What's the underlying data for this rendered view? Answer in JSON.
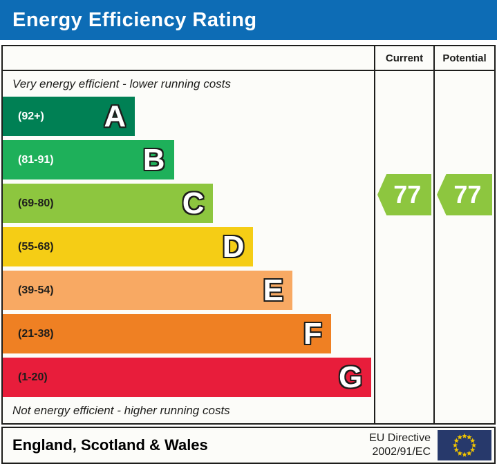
{
  "title_bar": {
    "title": "Energy Efficiency Rating",
    "bg_color": "#0d6cb5"
  },
  "table": {
    "headers": {
      "current": "Current",
      "potential": "Potential"
    },
    "top_note": "Very energy efficient - lower running costs",
    "bottom_note": "Not energy efficient - higher running costs"
  },
  "footer": {
    "region": "England, Scotland & Wales",
    "directive_line1": "EU Directive",
    "directive_line2": "2002/91/EC",
    "flag_icon": "eu-flag-icon",
    "flag_colors": {
      "field": "#27396b",
      "stars": "#f2c500"
    }
  },
  "chart_data": {
    "type": "bar",
    "title": "Energy Efficiency Rating",
    "categories": [
      "A",
      "B",
      "C",
      "D",
      "E",
      "F",
      "G"
    ],
    "bands": [
      {
        "letter": "A",
        "range_label": "(92+)",
        "score_min": 92,
        "score_max": 100,
        "color": "#008054",
        "label_color": "#ffffff",
        "width_pct": 35.6
      },
      {
        "letter": "B",
        "range_label": "(81-91)",
        "score_min": 81,
        "score_max": 91,
        "color": "#1eb05a",
        "label_color": "#ffffff",
        "width_pct": 46.1
      },
      {
        "letter": "C",
        "range_label": "(69-80)",
        "score_min": 69,
        "score_max": 80,
        "color": "#8dc63f",
        "label_color": "#1d1d1b",
        "width_pct": 56.7
      },
      {
        "letter": "D",
        "range_label": "(55-68)",
        "score_min": 55,
        "score_max": 68,
        "color": "#f5cd15",
        "label_color": "#1d1d1b",
        "width_pct": 67.5
      },
      {
        "letter": "E",
        "range_label": "(39-54)",
        "score_min": 39,
        "score_max": 54,
        "color": "#f8a963",
        "label_color": "#1d1d1b",
        "width_pct": 78.0
      },
      {
        "letter": "F",
        "range_label": "(21-38)",
        "score_min": 21,
        "score_max": 38,
        "color": "#ef8023",
        "label_color": "#1d1d1b",
        "width_pct": 88.4
      },
      {
        "letter": "G",
        "range_label": "(1-20)",
        "score_min": 1,
        "score_max": 20,
        "color": "#e81d3b",
        "label_color": "#1d1d1b",
        "width_pct": 99.3
      }
    ],
    "ratings": {
      "current": {
        "value": 77,
        "band": "C",
        "color": "#8dc63f"
      },
      "potential": {
        "value": 77,
        "band": "C",
        "color": "#8dc63f"
      }
    }
  }
}
